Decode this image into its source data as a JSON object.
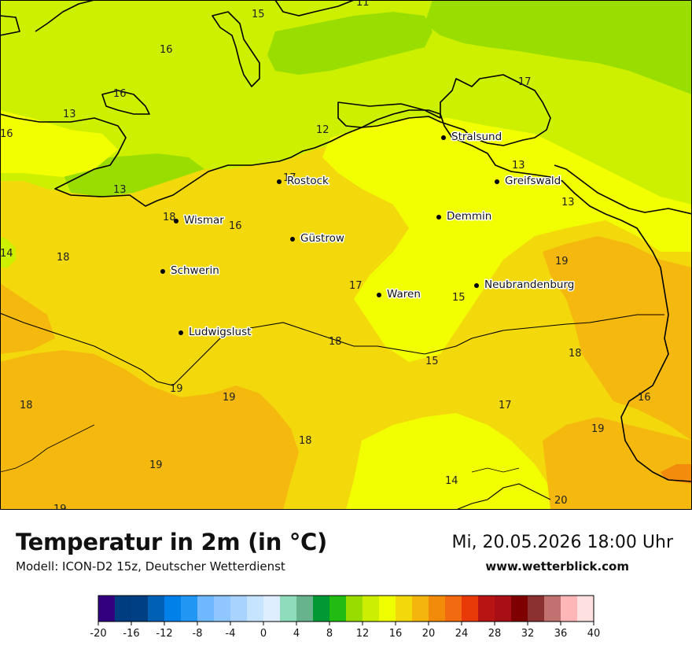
{
  "header": {
    "title": "Temperatur in 2m (in °C)",
    "model": "Modell: ICON-D2 15z, Deutscher Wetterdienst",
    "datetime": "Mi, 20.05.2026 18:00 Uhr",
    "site": "www.wetterblick.com"
  },
  "cities": [
    {
      "name": "Stralsund"
    },
    {
      "name": "Greifswald"
    },
    {
      "name": "Rostock"
    },
    {
      "name": "Demmin"
    },
    {
      "name": "Wismar"
    },
    {
      "name": "Güstrow"
    },
    {
      "name": "Schwerin"
    },
    {
      "name": "Neubrandenburg"
    },
    {
      "name": "Waren"
    },
    {
      "name": "Ludwigslust"
    }
  ],
  "temperature_labels": [
    "15",
    "11",
    "16",
    "16",
    "13",
    "16",
    "12",
    "17",
    "13",
    "17",
    "13",
    "18",
    "16",
    "14",
    "18",
    "19",
    "17",
    "15",
    "18",
    "18",
    "15",
    "19",
    "19",
    "18",
    "17",
    "16",
    "19",
    "18",
    "19",
    "14",
    "20",
    "19",
    "13"
  ],
  "legend": {
    "ticks": [
      "-20",
      "-16",
      "-12",
      "-8",
      "-4",
      "0",
      "4",
      "8",
      "12",
      "16",
      "20",
      "24",
      "28",
      "32",
      "36",
      "40"
    ],
    "colors": [
      "#33007f",
      "#003d80",
      "#003f84",
      "#0060b4",
      "#0080e8",
      "#2196f3",
      "#6fb8ff",
      "#8fc6ff",
      "#a8d3ff",
      "#c6e3ff",
      "#dfeeff",
      "#8fdcbc",
      "#66b38d",
      "#009933",
      "#22bb11",
      "#99dd00",
      "#ccee00",
      "#f0ff00",
      "#f3d90b",
      "#f4b60d",
      "#f28a0a",
      "#f26b10",
      "#e83a08",
      "#b81414",
      "#a80f14",
      "#7f0000",
      "#8b3131",
      "#c27171",
      "#ffb6b6",
      "#ffe0e0"
    ]
  },
  "palette": {
    "t11": "#99de00",
    "t13": "#cdf000",
    "t15": "#f1ff00",
    "t17": "#f3d90c",
    "t19": "#f4b80e",
    "t21": "#f38c0c"
  }
}
